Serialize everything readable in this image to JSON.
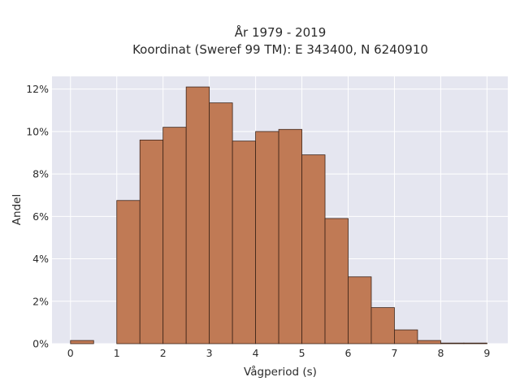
{
  "chart_data": {
    "type": "bar",
    "title_line1": "År 1979 - 2019",
    "title_line2": "Koordinat (Sweref 99 TM): E 343400, N 6240910",
    "xlabel": "Vågperiod (s)",
    "ylabel": "Andel",
    "bin_width": 0.5,
    "bins": [
      {
        "start": 0.0,
        "value": 0.15
      },
      {
        "start": 0.5,
        "value": 0.0
      },
      {
        "start": 1.0,
        "value": 6.75
      },
      {
        "start": 1.5,
        "value": 9.6
      },
      {
        "start": 2.0,
        "value": 10.2
      },
      {
        "start": 2.5,
        "value": 12.1
      },
      {
        "start": 3.0,
        "value": 11.35
      },
      {
        "start": 3.5,
        "value": 9.55
      },
      {
        "start": 4.0,
        "value": 10.0
      },
      {
        "start": 4.5,
        "value": 10.1
      },
      {
        "start": 5.0,
        "value": 8.9
      },
      {
        "start": 5.5,
        "value": 5.9
      },
      {
        "start": 6.0,
        "value": 3.15
      },
      {
        "start": 6.5,
        "value": 1.7
      },
      {
        "start": 7.0,
        "value": 0.65
      },
      {
        "start": 7.5,
        "value": 0.15
      },
      {
        "start": 8.0,
        "value": 0.03
      },
      {
        "start": 8.5,
        "value": 0.03
      }
    ],
    "x_ticks": [
      0,
      1,
      2,
      3,
      4,
      5,
      6,
      7,
      8,
      9
    ],
    "x_tick_labels": [
      "0",
      "1",
      "2",
      "3",
      "4",
      "5",
      "6",
      "7",
      "8",
      "9"
    ],
    "y_ticks": [
      0,
      2,
      4,
      6,
      8,
      10,
      12
    ],
    "y_tick_labels": [
      "0%",
      "2%",
      "4%",
      "6%",
      "8%",
      "10%",
      "12%"
    ],
    "xlim": [
      -0.4,
      9.45
    ],
    "ylim": [
      0,
      12.6
    ],
    "grid": true,
    "colors": {
      "plot_background": "#e5e6f0",
      "grid": "#ffffff",
      "bar_fill": "#c07a55",
      "bar_edge": "#3d2418"
    }
  }
}
